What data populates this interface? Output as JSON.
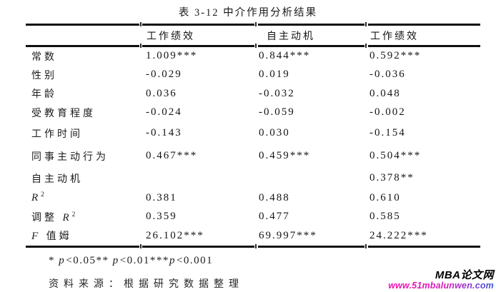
{
  "title": "表 3-12 中介作用分析结果",
  "table": {
    "headers": [
      "",
      "工作绩效",
      "自主动机",
      "工作绩效"
    ],
    "rows": [
      {
        "label": {
          "pre": "常数"
        },
        "v1": "1.009***",
        "v2": "0.844***",
        "v3": "0.592***"
      },
      {
        "label": {
          "pre": "性别"
        },
        "v1": "-0.029",
        "v2": "0.019",
        "v3": "-0.036"
      },
      {
        "label": {
          "pre": "年龄"
        },
        "v1": "0.036",
        "v2": "-0.032",
        "v3": "0.048"
      },
      {
        "label": {
          "pre": "受教育程度"
        },
        "v1": "-0.024",
        "v2": "-0.059",
        "v3": "-0.002"
      },
      {
        "label": {
          "pre": "工作时间"
        },
        "v1": "-0.143",
        "v2": "0.030",
        "v3": "-0.154"
      },
      {
        "label": {
          "pre": "同事主动行为"
        },
        "v1": "0.467***",
        "v2": "0.459***",
        "v3": "0.504***"
      },
      {
        "label": {
          "pre": "自主动机"
        },
        "v1": "",
        "v2": "",
        "v3": "0.378**"
      },
      {
        "label": {
          "it": "R",
          "sup": "2"
        },
        "v1": "0.381",
        "v2": "0.488",
        "v3": "0.610"
      },
      {
        "label": {
          "pre": "调整 ",
          "it": "R",
          "sup": "2"
        },
        "v1": "0.359",
        "v2": "0.477",
        "v3": "0.585"
      },
      {
        "label": {
          "it": "F",
          "post": " 值姆"
        },
        "v1": "26.102***",
        "v2": "69.997***",
        "v3": "24.222***"
      }
    ]
  },
  "note": {
    "seg1": "* ",
    "p1": "p",
    "seg2": "<0.05** ",
    "p2": "p",
    "seg3": "<0.01***",
    "p3": "p",
    "seg4": "<0.001"
  },
  "source": "资料来源：根据研究数据整理",
  "watermark": {
    "name": "MBA论文网",
    "url": "www.51mbalunwen.com",
    "url_color_start": "#ef10ae",
    "url_color_end": "#3c55dd",
    "name_color": "#000000"
  }
}
